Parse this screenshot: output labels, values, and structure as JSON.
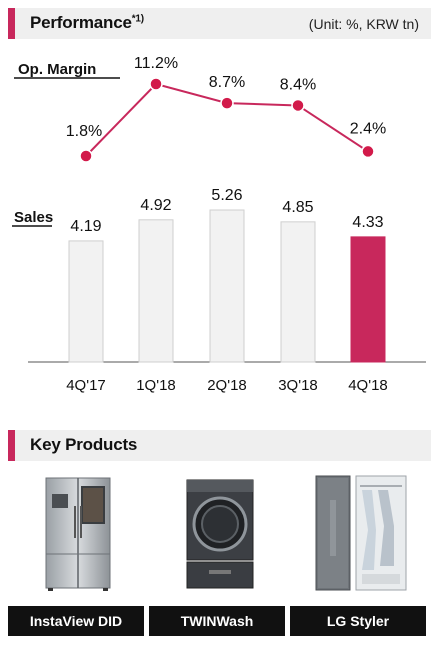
{
  "performance": {
    "title": "Performance",
    "title_sup": "*1)",
    "unit": "(Unit: %, KRW tn)"
  },
  "chart_data": {
    "type": "bar",
    "categories": [
      "4Q'17",
      "1Q'18",
      "2Q'18",
      "3Q'18",
      "4Q'18"
    ],
    "series": [
      {
        "name": "Sales",
        "type": "bar",
        "values": [
          4.19,
          4.92,
          5.26,
          4.85,
          4.33
        ],
        "labels": [
          "4.19",
          "4.92",
          "5.26",
          "4.85",
          "4.33"
        ]
      },
      {
        "name": "Op. Margin",
        "type": "line",
        "values": [
          1.8,
          11.2,
          8.7,
          8.4,
          2.4
        ],
        "labels": [
          "1.8%",
          "11.2%",
          "8.7%",
          "8.4%",
          "2.4%"
        ]
      }
    ],
    "highlight_index": 4,
    "colors": {
      "bar": "#f2f2f2",
      "bar_border": "#cfcfcf",
      "highlight": "#c8285c",
      "line": "#c8285c",
      "marker": "#d21a4a"
    },
    "sales_range": [
      0,
      5.26
    ],
    "margin_range": [
      1.8,
      11.2
    ]
  },
  "key_products": {
    "title": "Key Products",
    "items": [
      {
        "name": "InstaView DID",
        "icon": "refrigerator-icon"
      },
      {
        "name": "TWINWash",
        "icon": "washing-machine-icon"
      },
      {
        "name": "LG Styler",
        "icon": "styler-cabinet-icon"
      }
    ]
  }
}
